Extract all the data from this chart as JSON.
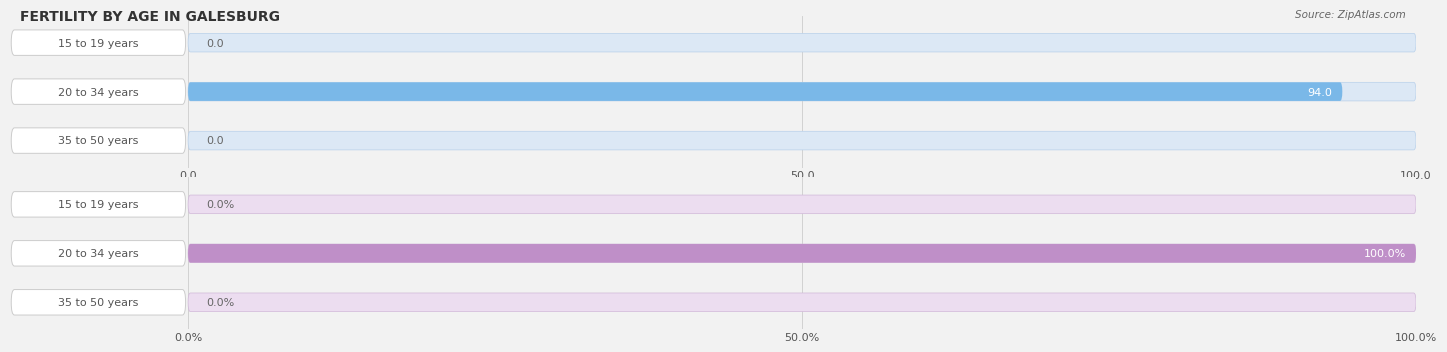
{
  "title": "FERTILITY BY AGE IN GALESBURG",
  "source_text": "Source: ZipAtlas.com",
  "top_chart": {
    "categories": [
      "15 to 19 years",
      "20 to 34 years",
      "35 to 50 years"
    ],
    "values": [
      0.0,
      94.0,
      0.0
    ],
    "xticks": [
      0.0,
      50.0,
      100.0
    ],
    "xtick_labels": [
      "0.0",
      "50.0",
      "100.0"
    ],
    "bar_color": "#7ab8e8",
    "bar_bg_color": "#dce8f5",
    "bar_border_color": "#b8d0ea"
  },
  "bottom_chart": {
    "categories": [
      "15 to 19 years",
      "20 to 34 years",
      "35 to 50 years"
    ],
    "values": [
      0.0,
      100.0,
      0.0
    ],
    "xticks": [
      0.0,
      50.0,
      100.0
    ],
    "xtick_labels": [
      "0.0%",
      "50.0%",
      "100.0%"
    ],
    "bar_color": "#bf8fc8",
    "bar_bg_color": "#ecddf0",
    "bar_border_color": "#d0b8d8"
  },
  "bg_color": "#f2f2f2",
  "label_bg_color": "#ffffff",
  "label_border_color": "#cccccc",
  "label_color": "#555555",
  "value_color_inside": "#ffffff",
  "value_color_outside": "#666666",
  "grid_color": "#cccccc",
  "title_fontsize": 10,
  "label_fontsize": 8,
  "value_fontsize": 8,
  "tick_fontsize": 8,
  "total_range": 100,
  "label_space": 14.5
}
